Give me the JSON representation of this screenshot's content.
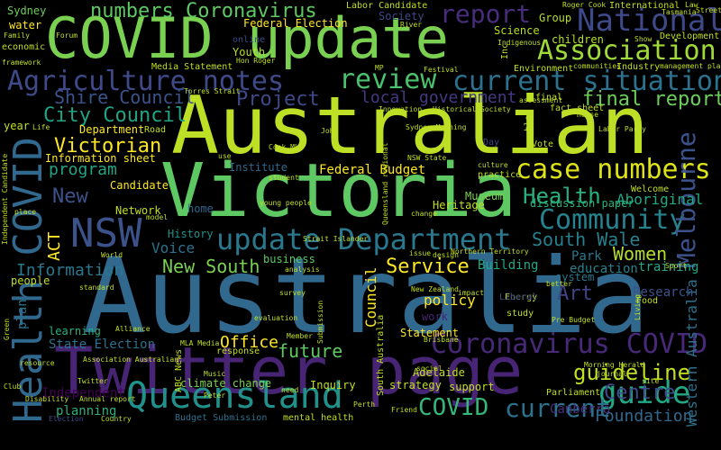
{
  "words": [
    {
      "text": "Australia",
      "color": "#31688e"
    },
    {
      "text": "Australian",
      "color": "#bddf26"
    },
    {
      "text": "Victoria",
      "color": "#5ec962"
    },
    {
      "text": "Twitter page",
      "color": "#482475"
    },
    {
      "text": "COVID update",
      "color": "#7ad151"
    },
    {
      "text": "Queensland",
      "color": "#21918c"
    },
    {
      "text": "update Department",
      "color": "#2a788e"
    },
    {
      "text": "NSW",
      "color": "#3b528b"
    },
    {
      "text": "Health COVID",
      "color": "#31688e"
    },
    {
      "text": "National",
      "color": "#3e4989"
    },
    {
      "text": "Association",
      "color": "#a0da39"
    },
    {
      "text": "Agriculture notes",
      "color": "#3e4a89"
    },
    {
      "text": "current situation",
      "color": "#2c728e"
    },
    {
      "text": "Coronavirus COVID",
      "color": "#482878"
    },
    {
      "text": "case numbers",
      "color": "#dde318"
    },
    {
      "text": "Community",
      "color": "#26828e"
    },
    {
      "text": "Melbourne",
      "color": "#3b528b"
    },
    {
      "text": "guideline",
      "color": "#c2df23"
    },
    {
      "text": "guide",
      "color": "#22a884"
    },
    {
      "text": "review",
      "color": "#4ac16d"
    },
    {
      "text": "report",
      "color": "#472d7b"
    },
    {
      "text": "numbers Coronavirus",
      "color": "#5ec962"
    },
    {
      "text": "City Council",
      "color": "#20a486"
    },
    {
      "text": "Victorian",
      "color": "#fde725"
    },
    {
      "text": "Shire Council",
      "color": "#3b528b"
    },
    {
      "text": "Project",
      "color": "#3e4989"
    },
    {
      "text": "local government",
      "color": "#443983"
    },
    {
      "text": "final report",
      "color": "#6ccd5a"
    },
    {
      "text": "Health",
      "color": "#2ab07f"
    },
    {
      "text": "South Wale",
      "color": "#277f8e"
    },
    {
      "text": "Women",
      "color": "#b5de2b"
    },
    {
      "text": "Service",
      "color": "#fde725"
    },
    {
      "text": "New South",
      "color": "#7ad151"
    },
    {
      "text": "Art",
      "color": "#414487"
    },
    {
      "text": "Centre",
      "color": "#3e4a89"
    },
    {
      "text": "current",
      "color": "#2c728e"
    },
    {
      "text": "COVID",
      "color": "#35b779"
    },
    {
      "text": "Office",
      "color": "#fde725"
    },
    {
      "text": "future",
      "color": "#5ec962"
    },
    {
      "text": "Canberra",
      "color": "#472f7d"
    },
    {
      "text": "Foundation",
      "color": "#31688e"
    },
    {
      "text": "Information",
      "color": "#2a788e"
    },
    {
      "text": "program",
      "color": "#21a585"
    },
    {
      "text": "Independent",
      "color": "#440154"
    },
    {
      "text": "Western Australia",
      "color": "#2c728e"
    },
    {
      "text": "Information sheet",
      "color": "#fde725"
    },
    {
      "text": "Federal Budget",
      "color": "#fde725"
    },
    {
      "text": "Aboriginal",
      "color": "#22a884"
    },
    {
      "text": "Council",
      "color": "#fde725"
    },
    {
      "text": "policy",
      "color": "#fde725"
    },
    {
      "text": "Research",
      "color": "#3b528b"
    },
    {
      "text": "Park",
      "color": "#2a788e"
    },
    {
      "text": "education",
      "color": "#26828e"
    },
    {
      "text": "training",
      "color": "#22a884"
    },
    {
      "text": "Voice",
      "color": "#2c728e"
    },
    {
      "text": "ACT",
      "color": "#fde725"
    },
    {
      "text": "New",
      "color": "#3b528b"
    },
    {
      "text": "plan",
      "color": "#2c728e"
    },
    {
      "text": "Building",
      "color": "#22a884"
    },
    {
      "text": "State Election",
      "color": "#2c728e"
    },
    {
      "text": "planning",
      "color": "#2ab07f"
    },
    {
      "text": "Sydney",
      "color": "#6ccd5a"
    },
    {
      "text": "Science",
      "color": "#b5de2b"
    },
    {
      "text": "Society",
      "color": "#3e4a89"
    },
    {
      "text": "water",
      "color": "#fde725"
    },
    {
      "text": "Youth",
      "color": "#b5de2b"
    },
    {
      "text": "people",
      "color": "#bddf26"
    },
    {
      "text": "Department",
      "color": "#fde725"
    },
    {
      "text": "Candidate",
      "color": "#fde725"
    },
    {
      "text": "History",
      "color": "#21918c"
    },
    {
      "text": "home",
      "color": "#31688e"
    },
    {
      "text": "Museum",
      "color": "#7ad151"
    },
    {
      "text": "Heritage",
      "color": "#c2df23"
    },
    {
      "text": "Institute",
      "color": "#31688e"
    },
    {
      "text": "business",
      "color": "#5ec962"
    },
    {
      "text": "Network",
      "color": "#c2df23"
    },
    {
      "text": "Statement",
      "color": "#fde725"
    },
    {
      "text": "strategy",
      "color": "#c2df23"
    },
    {
      "text": "support",
      "color": "#c2df23"
    },
    {
      "text": "Inquiry",
      "color": "#c2df23"
    },
    {
      "text": "Adelaide",
      "color": "#c2df23"
    },
    {
      "text": "work",
      "color": "#482475"
    },
    {
      "text": "learning",
      "color": "#2ab07f"
    },
    {
      "text": "Group",
      "color": "#b5de2b"
    },
    {
      "text": "children",
      "color": "#b5de2b"
    },
    {
      "text": "system",
      "color": "#2a788e"
    },
    {
      "text": "discussion paper",
      "color": "#2ab07f"
    },
    {
      "text": "climate change",
      "color": "#7ad151"
    },
    {
      "text": "mental health",
      "color": "#c2df23"
    },
    {
      "text": "Budget Submission",
      "color": "#2c728e"
    },
    {
      "text": "Federal Election",
      "color": "#fde725"
    },
    {
      "text": "Labor Candidate",
      "color": "#c2df23"
    },
    {
      "text": "Media Statement",
      "color": "#c2df23"
    },
    {
      "text": "Parliament",
      "color": "#c2df23"
    },
    {
      "text": "International",
      "color": "#c2df23"
    },
    {
      "text": "Development",
      "color": "#c2df23"
    },
    {
      "text": "fact sheet",
      "color": "#c2df23"
    },
    {
      "text": "Industry",
      "color": "#c2df23"
    },
    {
      "text": "Environment",
      "color": "#c2df23"
    },
    {
      "text": "Energy",
      "color": "#c2df23"
    },
    {
      "text": "Liberal",
      "color": "#3e4a89"
    },
    {
      "text": "study",
      "color": "#c2df23"
    },
    {
      "text": "Food",
      "color": "#c2df23"
    },
    {
      "text": "economic",
      "color": "#c2df23"
    },
    {
      "text": "online",
      "color": "#3e4a89"
    },
    {
      "text": "Forum",
      "color": "#c2df23"
    },
    {
      "text": "Road",
      "color": "#c2df23"
    },
    {
      "text": "Vote",
      "color": "#c2df23"
    },
    {
      "text": "Day",
      "color": "#3e4a89"
    },
    {
      "text": "final",
      "color": "#c2df23"
    },
    {
      "text": "Friend",
      "color": "#c2df23"
    },
    {
      "text": "Country",
      "color": "#c2df23"
    },
    {
      "text": "Election",
      "color": "#3e4a89"
    },
    {
      "text": "ABC News",
      "color": "#c2df23"
    },
    {
      "text": "response",
      "color": "#c2df23"
    },
    {
      "text": "MP",
      "color": "#c2df23"
    },
    {
      "text": "Inc",
      "color": "#c2df23"
    },
    {
      "text": "blog",
      "color": "#c2df23"
    },
    {
      "text": "student",
      "color": "#c2df23"
    },
    {
      "text": "Festival",
      "color": "#c2df23"
    },
    {
      "text": "Labor Party",
      "color": "#c2df23"
    },
    {
      "text": "Pre Budget",
      "color": "#c2df23"
    },
    {
      "text": "Morning Herald",
      "color": "#c2df23"
    },
    {
      "text": "site",
      "color": "#c2df23"
    },
    {
      "text": "Submission",
      "color": "#c2df23"
    },
    {
      "text": "Torres Strait",
      "color": "#c2df23"
    },
    {
      "text": "Alliance",
      "color": "#c2df23"
    },
    {
      "text": "Strait Islander",
      "color": "#c2df23"
    },
    {
      "text": "World",
      "color": "#c2df23"
    },
    {
      "text": "resource",
      "color": "#c2df23"
    },
    {
      "text": "Club",
      "color": "#c2df23"
    },
    {
      "text": "Green",
      "color": "#c2df23"
    },
    {
      "text": "Music",
      "color": "#c2df23"
    },
    {
      "text": "Peter",
      "color": "#c2df23"
    },
    {
      "text": "need",
      "color": "#c2df23"
    },
    {
      "text": "Member",
      "color": "#c2df23"
    },
    {
      "text": "Perth",
      "color": "#c2df23"
    },
    {
      "text": "social",
      "color": "#c2df23"
    },
    {
      "text": "impact",
      "color": "#c2df23"
    },
    {
      "text": "better",
      "color": "#c2df23"
    },
    {
      "text": "Living",
      "color": "#c2df23"
    },
    {
      "text": "Sport",
      "color": "#c2df23"
    },
    {
      "text": "Welcome",
      "color": "#c2df23"
    },
    {
      "text": "Northern Territory",
      "color": "#c2df23"
    },
    {
      "text": "South Australia",
      "color": "#c2df23"
    },
    {
      "text": "Queensland regional",
      "color": "#c2df23"
    },
    {
      "text": "NSW State",
      "color": "#c2df23"
    },
    {
      "text": "New Zealand",
      "color": "#c2df23"
    },
    {
      "text": "Historical Society",
      "color": "#c2df23"
    },
    {
      "text": "Innovation",
      "color": "#c2df23"
    },
    {
      "text": "Sydney Morning",
      "color": "#c2df23"
    },
    {
      "text": "John",
      "color": "#c2df23"
    },
    {
      "text": "Life",
      "color": "#c2df23"
    },
    {
      "text": "year",
      "color": "#c2df23"
    },
    {
      "text": "River",
      "color": "#c2df23"
    },
    {
      "text": "Indigenous",
      "color": "#c2df23"
    },
    {
      "text": "Roger Cook",
      "color": "#c2df23"
    },
    {
      "text": "Tasmania",
      "color": "#c2df23"
    },
    {
      "text": "Street",
      "color": "#c2df23"
    },
    {
      "text": "Law",
      "color": "#c2df23"
    },
    {
      "text": "Family",
      "color": "#c2df23"
    },
    {
      "text": "framework",
      "color": "#c2df23"
    },
    {
      "text": "Hon Roger",
      "color": "#c2df23"
    },
    {
      "text": "Show",
      "color": "#c2df23"
    },
    {
      "text": "communities",
      "color": "#c2df23"
    },
    {
      "text": "management plan",
      "color": "#c2df23"
    },
    {
      "text": "Independent Candidate",
      "color": "#c2df23"
    },
    {
      "text": "standard",
      "color": "#c2df23"
    },
    {
      "text": "place",
      "color": "#c2df23"
    },
    {
      "text": "evaluation",
      "color": "#c2df23"
    },
    {
      "text": "analysis",
      "color": "#c2df23"
    },
    {
      "text": "survey",
      "color": "#c2df23"
    },
    {
      "text": "model",
      "color": "#c2df23"
    },
    {
      "text": "young people",
      "color": "#c2df23"
    },
    {
      "text": "Cook MLA",
      "color": "#c2df23"
    },
    {
      "text": "use",
      "color": "#c2df23"
    },
    {
      "text": "change",
      "color": "#c2df23"
    },
    {
      "text": "culture",
      "color": "#c2df23"
    },
    {
      "text": "practice",
      "color": "#c2df23"
    },
    {
      "text": "design",
      "color": "#c2df23"
    },
    {
      "text": "issue",
      "color": "#c2df23"
    },
    {
      "text": "Association Australian",
      "color": "#c2df23"
    },
    {
      "text": "Annual report",
      "color": "#c2df23"
    },
    {
      "text": "MLA Media",
      "color": "#c2df23"
    },
    {
      "text": "Brisbane",
      "color": "#c2df23"
    },
    {
      "text": "assessment",
      "color": "#c2df23"
    },
    {
      "text": "House",
      "color": "#c2df23"
    },
    {
      "text": "Disability",
      "color": "#c2df23"
    },
    {
      "text": "Twitter",
      "color": "#c2df23"
    },
    {
      "text": "journal",
      "color": "#c2df23"
    }
  ]
}
